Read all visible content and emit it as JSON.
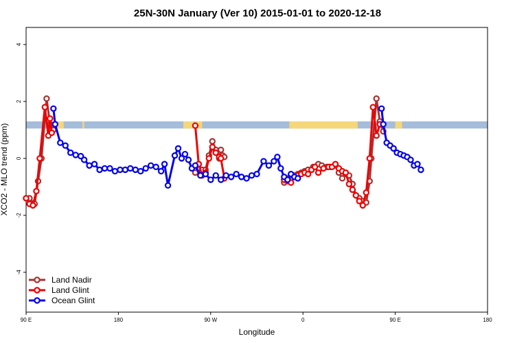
{
  "chart_data": {
    "type": "line",
    "title": "25N-30N January (Ver 10)   2015-01-01 to 2020-12-18",
    "xlabel": "Longitude",
    "ylabel": "XCO2 - MLO trend (ppm)",
    "xlim": [
      -90,
      180
    ],
    "ylim": [
      -5.4,
      4.6
    ],
    "xticks": [
      {
        "value": -90,
        "label": "90 E"
      },
      {
        "value": -36,
        "label": "180"
      },
      {
        "value": 18,
        "label": "90 W"
      },
      {
        "value": 72,
        "label": "0"
      },
      {
        "value": 126,
        "label": "90 E"
      },
      {
        "value": 180,
        "label": "180"
      }
    ],
    "yticks": [
      -4,
      -2,
      0,
      2,
      4
    ],
    "legend_position": "bottom-left",
    "landmask_band": {
      "y_range": [
        1.05,
        1.3
      ],
      "ocean_color": "#a5bcdb",
      "land_color": "#f5d77a",
      "land_segments": [
        [
          -74,
          -68
        ],
        [
          -57,
          -56
        ],
        [
          2,
          8
        ],
        [
          9,
          13
        ],
        [
          64,
          104
        ],
        [
          126,
          130
        ]
      ]
    },
    "series": [
      {
        "name": "Land Nadir",
        "color": "#a83232",
        "points": [
          [
            -88,
            -1.4
          ],
          [
            -85,
            -1.6
          ],
          [
            -83,
            -0.8
          ],
          [
            -81,
            0.0
          ],
          [
            -78,
            2.1
          ],
          [
            -76,
            1.2
          ],
          [
            -74,
            1.0
          ],
          [
            9,
            -0.5
          ],
          [
            11,
            -0.2
          ],
          [
            13,
            -0.4
          ],
          [
            15,
            -0.4
          ],
          [
            17,
            0.1
          ],
          [
            19,
            0.6
          ],
          [
            21,
            0.3
          ],
          [
            23,
            0.0
          ],
          [
            24,
            0.3
          ],
          [
            25,
            0.1
          ],
          [
            26,
            0.05
          ],
          [
            61,
            -0.85
          ],
          [
            63,
            -0.7
          ],
          [
            65,
            -0.6
          ],
          [
            67,
            -0.6
          ],
          [
            69,
            -0.55
          ],
          [
            71,
            -0.5
          ],
          [
            73,
            -0.45
          ],
          [
            75,
            -0.4
          ],
          [
            78,
            -0.3
          ],
          [
            81,
            -0.2
          ],
          [
            83,
            -0.25
          ],
          [
            86,
            -0.3
          ],
          [
            88,
            -0.3
          ],
          [
            91,
            -0.25
          ],
          [
            93,
            -0.5
          ],
          [
            95,
            -0.7
          ],
          [
            97,
            -0.55
          ],
          [
            99,
            -0.6
          ],
          [
            101,
            -0.9
          ],
          [
            103,
            -1.3
          ],
          [
            105,
            -1.4
          ],
          [
            107,
            -1.5
          ],
          [
            109,
            -1.55
          ],
          [
            111,
            -0.8
          ],
          [
            112,
            0.0
          ],
          [
            115,
            2.1
          ],
          [
            117,
            1.3
          ],
          [
            119,
            0.95
          ]
        ]
      },
      {
        "name": "Land Glint",
        "color": "#ee0000",
        "points": [
          [
            -90,
            -1.4
          ],
          [
            -88,
            -1.6
          ],
          [
            -86,
            -1.65
          ],
          [
            -84,
            -1.15
          ],
          [
            -82,
            0.0
          ],
          [
            -79,
            1.8
          ],
          [
            -77,
            0.8
          ],
          [
            -76,
            1.4
          ],
          [
            -75,
            0.9
          ],
          [
            9,
            1.15
          ],
          [
            11,
            -0.2
          ],
          [
            13,
            -0.6
          ],
          [
            15,
            -0.5
          ],
          [
            17,
            0.0
          ],
          [
            19,
            0.4
          ],
          [
            21,
            0.2
          ],
          [
            23,
            0.05
          ],
          [
            24,
            0.0
          ],
          [
            26,
            -0.7
          ],
          [
            61,
            -0.75
          ],
          [
            63,
            -0.8
          ],
          [
            65,
            -0.85
          ],
          [
            67,
            -0.65
          ],
          [
            69,
            -0.6
          ],
          [
            71,
            -0.55
          ],
          [
            73,
            -0.5
          ],
          [
            75,
            -0.55
          ],
          [
            77,
            -0.4
          ],
          [
            79,
            -0.3
          ],
          [
            81,
            -0.5
          ],
          [
            84,
            -0.35
          ],
          [
            87,
            -0.3
          ],
          [
            89,
            -0.3
          ],
          [
            91,
            -0.2
          ],
          [
            93,
            -0.35
          ],
          [
            95,
            -0.45
          ],
          [
            97,
            -0.5
          ],
          [
            99,
            -0.9
          ],
          [
            101,
            -1.1
          ],
          [
            103,
            -1.3
          ],
          [
            105,
            -1.5
          ],
          [
            107,
            -1.65
          ],
          [
            109,
            -1.2
          ],
          [
            111,
            0.0
          ],
          [
            113,
            1.8
          ],
          [
            115,
            0.8
          ],
          [
            117,
            1.2
          ]
        ]
      },
      {
        "name": "Ocean Glint",
        "color": "#0000ee",
        "points": [
          [
            -74,
            1.75
          ],
          [
            -73,
            1.2
          ],
          [
            -70,
            0.55
          ],
          [
            -67,
            0.45
          ],
          [
            -64,
            0.2
          ],
          [
            -61,
            0.12
          ],
          [
            -58,
            0.08
          ],
          [
            -56,
            -0.05
          ],
          [
            -53,
            -0.25
          ],
          [
            -50,
            -0.2
          ],
          [
            -47,
            -0.4
          ],
          [
            -44,
            -0.35
          ],
          [
            -41,
            -0.35
          ],
          [
            -38,
            -0.45
          ],
          [
            -35,
            -0.4
          ],
          [
            -32,
            -0.4
          ],
          [
            -29,
            -0.35
          ],
          [
            -26,
            -0.4
          ],
          [
            -23,
            -0.45
          ],
          [
            -20,
            -0.35
          ],
          [
            -17,
            -0.25
          ],
          [
            -14,
            -0.3
          ],
          [
            -11,
            -0.45
          ],
          [
            -9,
            -0.2
          ],
          [
            -7,
            -0.95
          ],
          [
            -3,
            0.1
          ],
          [
            -1,
            0.35
          ],
          [
            1,
            0.0
          ],
          [
            3,
            0.15
          ],
          [
            5,
            -0.05
          ],
          [
            7,
            -0.35
          ],
          [
            9,
            -0.25
          ],
          [
            12,
            -0.6
          ],
          [
            15,
            -0.55
          ],
          [
            18,
            -0.75
          ],
          [
            21,
            -0.6
          ],
          [
            24,
            -0.75
          ],
          [
            27,
            -0.6
          ],
          [
            30,
            -0.65
          ],
          [
            33,
            -0.55
          ],
          [
            36,
            -0.65
          ],
          [
            39,
            -0.7
          ],
          [
            42,
            -0.6
          ],
          [
            45,
            -0.55
          ],
          [
            49,
            -0.1
          ],
          [
            52,
            -0.25
          ],
          [
            55,
            -0.1
          ],
          [
            57,
            0.05
          ],
          [
            59,
            -0.35
          ],
          [
            61,
            -0.65
          ],
          [
            63,
            -0.75
          ],
          [
            65,
            -0.55
          ],
          [
            67,
            -0.65
          ],
          [
            69,
            -0.7
          ]
        ]
      },
      {
        "name": "",
        "color": "#0000ee",
        "points": [
          [
            118,
            1.75
          ],
          [
            119,
            1.2
          ],
          [
            121,
            0.55
          ],
          [
            123,
            0.45
          ],
          [
            125,
            0.35
          ],
          [
            127,
            0.2
          ],
          [
            129,
            0.15
          ],
          [
            131,
            0.1
          ],
          [
            133,
            0.05
          ],
          [
            135,
            -0.05
          ],
          [
            137,
            -0.25
          ],
          [
            139,
            -0.2
          ],
          [
            141,
            -0.4
          ]
        ]
      }
    ]
  }
}
